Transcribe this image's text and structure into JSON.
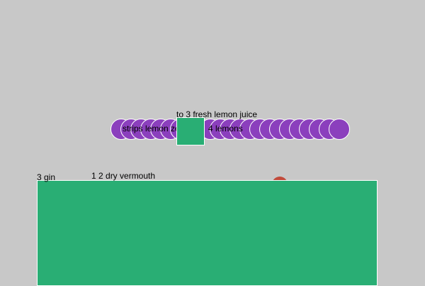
{
  "colors": {
    "background": "#c8c8c8",
    "purple": "#8b3fbd",
    "green": "#29ae74",
    "red": "#c04a3a",
    "text": "#000000"
  },
  "labels": {
    "top": "to 3 fresh lemon juice",
    "strips": "strips lemon zest",
    "lemons": "4 lemons",
    "gin": "3 gin",
    "vermouth": "1 2 dry vermouth"
  },
  "circle_row": {
    "count": 23
  }
}
